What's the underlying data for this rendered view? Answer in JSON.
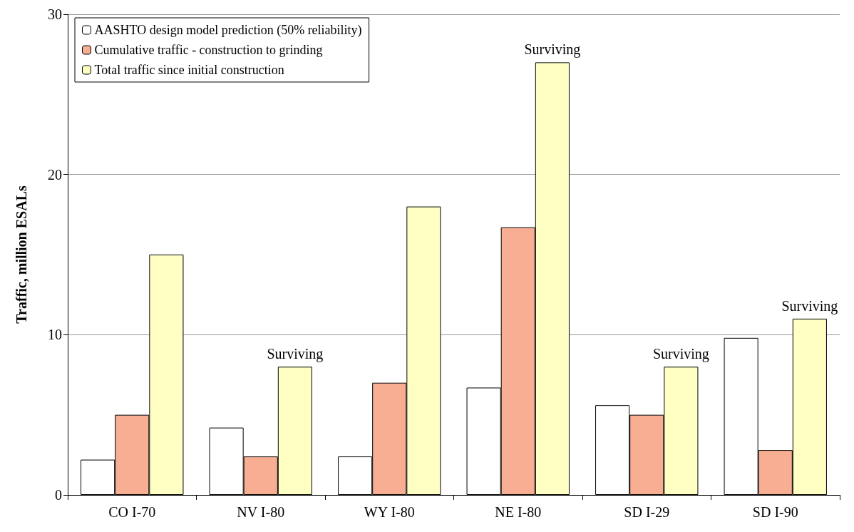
{
  "chart_data": {
    "type": "bar",
    "ylabel": "Traffic, million ESALs",
    "categories": [
      "CO I-70",
      "NV I-80",
      "WY I-80",
      "NE I-80",
      "SD I-29",
      "SD I-90"
    ],
    "series": [
      {
        "name": "AASHTO design model prediction (50% reliability)",
        "color": "#ffffff",
        "values": [
          2.2,
          4.2,
          2.4,
          6.7,
          5.6,
          9.8
        ]
      },
      {
        "name": "Cumulative traffic - construction to grinding",
        "color": "#f7ae93",
        "values": [
          5.0,
          2.4,
          7.0,
          16.7,
          5.0,
          2.8
        ]
      },
      {
        "name": "Total traffic since initial construction",
        "color": "#ffffc4",
        "values": [
          15.0,
          8.0,
          18.0,
          27.0,
          8.0,
          11.0
        ],
        "value_labels": [
          null,
          "Surviving",
          null,
          "Surviving",
          "Surviving",
          "Surviving"
        ]
      }
    ],
    "ylim": [
      0,
      30
    ],
    "yticks": [
      0,
      10,
      20,
      30
    ],
    "grid": "y",
    "legend": "top left"
  }
}
